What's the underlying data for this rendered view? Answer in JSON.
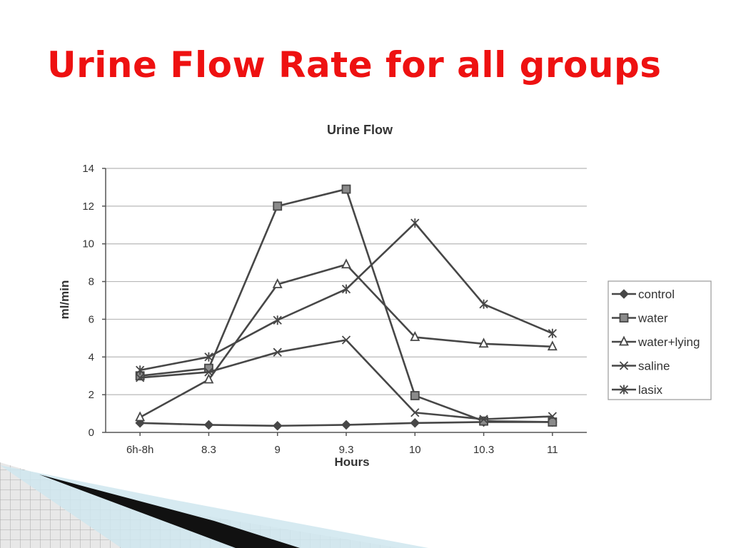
{
  "slide": {
    "title": "Urine Flow Rate for all groups"
  },
  "chart_data": {
    "type": "line",
    "title": "Urine Flow",
    "xlabel": "Hours",
    "ylabel": "ml/min",
    "categories": [
      "6h-8h",
      "8.3",
      "9",
      "9.3",
      "10",
      "10.3",
      "11"
    ],
    "ylim": [
      0,
      14
    ],
    "yticks": [
      0,
      2,
      4,
      6,
      8,
      10,
      12,
      14
    ],
    "grid": true,
    "legend_position": "right",
    "series": [
      {
        "name": "control",
        "marker": "diamond",
        "values": [
          0.5,
          0.4,
          0.35,
          0.4,
          0.5,
          0.55,
          0.55
        ]
      },
      {
        "name": "water",
        "marker": "square",
        "values": [
          3.0,
          3.4,
          12.0,
          12.9,
          1.95,
          0.6,
          0.55
        ]
      },
      {
        "name": "water+lying",
        "marker": "triangle",
        "values": [
          0.8,
          2.8,
          7.85,
          8.9,
          5.05,
          4.7,
          4.55
        ]
      },
      {
        "name": "saline",
        "marker": "x",
        "values": [
          2.9,
          3.2,
          4.25,
          4.9,
          1.05,
          0.7,
          0.85
        ]
      },
      {
        "name": "lasix",
        "marker": "asterisk",
        "values": [
          3.3,
          4.0,
          5.95,
          7.6,
          11.1,
          6.8,
          5.25
        ]
      }
    ],
    "colors": {
      "line": "#474747",
      "grid": "#b8b8b8",
      "title": "#ee1111"
    }
  }
}
